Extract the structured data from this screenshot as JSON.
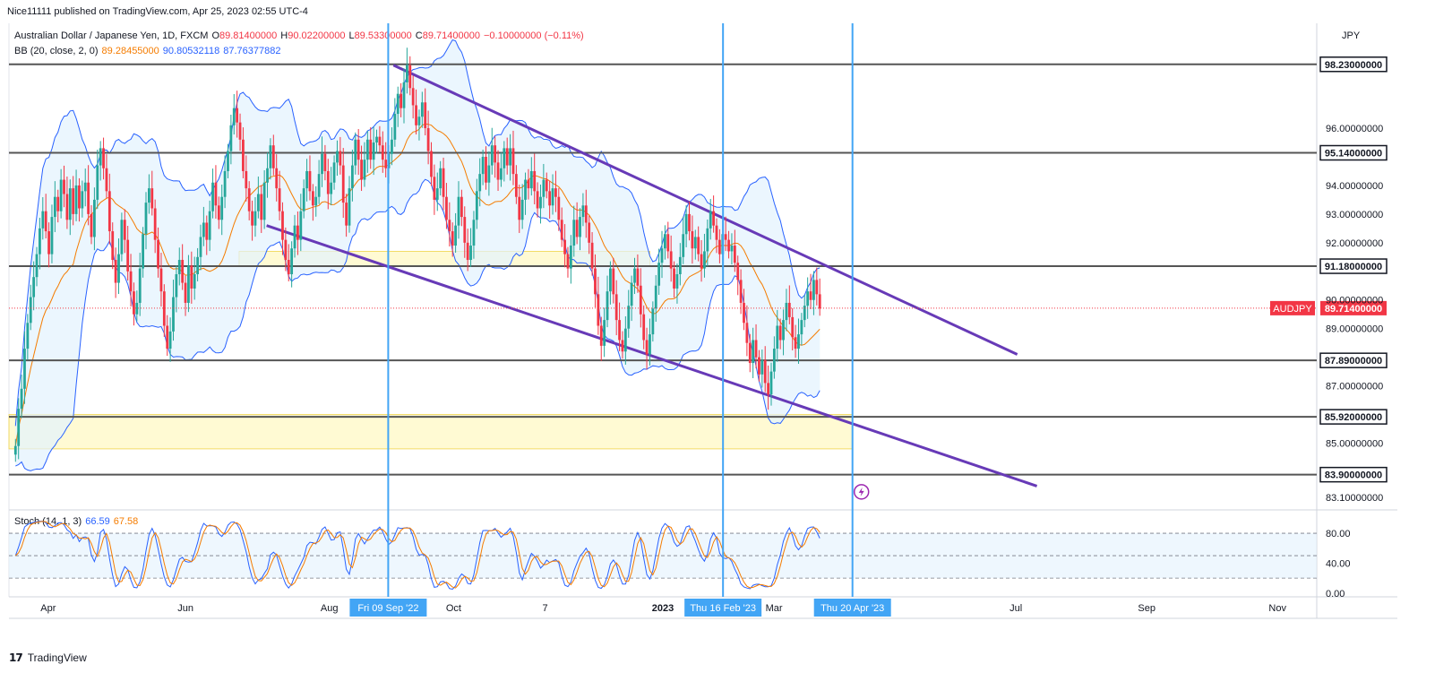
{
  "publisher": "Nice11111 published on TradingView.com, Apr 25, 2023 02:55 UTC-4",
  "symbol_legend": {
    "title": "Australian Dollar / Japanese Yen, 1D, FXCM",
    "open_label": "O",
    "open": "89.81400000",
    "high_label": "H",
    "high": "90.02200000",
    "low_label": "L",
    "low": "89.53300000",
    "close_label": "C",
    "close": "89.71400000",
    "change": "−0.10000000 (−0.11%)"
  },
  "bb_legend": {
    "label": "BB (20, close, 2, 0)",
    "basis": "89.28455000",
    "upper": "90.80532118",
    "lower": "87.76377882"
  },
  "stoch_legend": {
    "label": "Stoch (14, 1, 3)",
    "k": "66.59",
    "d": "67.58"
  },
  "currency": "JPY",
  "logo_text": "TradingView",
  "colors": {
    "up": "#26a69a",
    "down": "#f23645",
    "bb_basis": "#f57c00",
    "bb_band": "#2962ff",
    "bb_fill": "#e3f2fd",
    "trendline": "#673ab7",
    "hline": "#555555",
    "vline": "#42a5f5",
    "zone": "#fff59d",
    "stoch_k": "#2962ff",
    "stoch_d": "#f57c00"
  },
  "chart_data": {
    "type": "candlestick",
    "price_axis": {
      "ylim": [
        82.7,
        99.6
      ],
      "tick_labels": [
        "96.00000000",
        "94.00000000",
        "93.00000000",
        "92.00000000",
        "90.00000000",
        "89.00000000",
        "87.00000000",
        "85.00000000",
        "83.10000000"
      ],
      "tick_values": [
        96.0,
        94.0,
        93.0,
        92.0,
        90.0,
        89.0,
        87.0,
        85.0,
        83.1
      ]
    },
    "time_axis": {
      "labels": [
        "Apr",
        "Jun",
        "Aug",
        "Oct",
        "7",
        "2023",
        "Mar",
        "Jul",
        "Sep",
        "Nov"
      ],
      "label_positions": [
        0.03,
        0.135,
        0.245,
        0.34,
        0.41,
        0.5,
        0.585,
        0.77,
        0.87,
        0.97
      ]
    },
    "horizontal_levels": [
      {
        "label": "98.23000000",
        "value": 98.23,
        "dark": true
      },
      {
        "label": "95.14000000",
        "value": 95.14,
        "dark": true
      },
      {
        "label": "91.18000000",
        "value": 91.18,
        "dark": true
      },
      {
        "label": "87.89000000",
        "value": 87.89,
        "dark": true
      },
      {
        "label": "85.92000000",
        "value": 85.92,
        "dark": true
      },
      {
        "label": "83.90000000",
        "value": 83.9,
        "dark": true
      }
    ],
    "last_price": {
      "label": "AUDJPY",
      "value": "89.71400000",
      "y": 89.714
    },
    "vertical_markers": [
      {
        "label": "Fri 09 Sep '22",
        "t": 0.29
      },
      {
        "label": "Thu 16 Feb '23",
        "t": 0.546
      },
      {
        "label": "Thu 20 Apr '23",
        "t": 0.645
      }
    ],
    "zones": [
      {
        "t0": 0.176,
        "t1": 0.49,
        "y0": 91.2,
        "y1": 91.7
      },
      {
        "t0": 0.0,
        "t1": 0.645,
        "y0": 84.8,
        "y1": 86.0
      }
    ],
    "trendlines": [
      {
        "t0": 0.294,
        "y0": 98.2,
        "t1": 0.771,
        "y1": 88.1
      },
      {
        "t0": 0.197,
        "y0": 92.6,
        "t1": 0.786,
        "y1": 83.5
      }
    ],
    "candles": {
      "closes": [
        84.9,
        86.2,
        86.9,
        88.3,
        89.2,
        90.1,
        90.8,
        91.6,
        92.5,
        93.1,
        92.4,
        91.6,
        92.9,
        93.6,
        93.1,
        94.2,
        93.7,
        92.8,
        93.9,
        93.0,
        94.0,
        93.2,
        93.8,
        94.1,
        93.0,
        92.2,
        93.5,
        94.7,
        95.3,
        94.6,
        93.8,
        92.4,
        91.4,
        90.6,
        91.6,
        92.8,
        92.1,
        91.0,
        90.3,
        89.5,
        89.9,
        91.1,
        92.3,
        93.4,
        93.9,
        93.2,
        92.1,
        91.1,
        90.3,
        89.1,
        88.3,
        88.9,
        90.1,
        90.9,
        91.4,
        90.6,
        89.9,
        91.2,
        90.4,
        90.9,
        91.5,
        92.2,
        92.7,
        92.1,
        93.1,
        94.1,
        93.3,
        92.8,
        93.6,
        94.5,
        95.2,
        96.1,
        96.7,
        96.2,
        95.6,
        94.5,
        93.9,
        93.1,
        92.6,
        93.1,
        93.7,
        92.8,
        94.1,
        94.6,
        95.4,
        94.6,
        93.9,
        93.1,
        92.1,
        91.4,
        90.9,
        91.8,
        92.6,
        92.1,
        93.1,
        93.9,
        94.5,
        93.8,
        93.3,
        93.6,
        94.4,
        95.1,
        94.5,
        93.7,
        94.1,
        94.8,
        95.2,
        94.7,
        93.4,
        92.6,
        93.9,
        94.7,
        95.6,
        94.9,
        94.2,
        94.9,
        95.6,
        94.9,
        95.5,
        95.7,
        95.4,
        94.9,
        94.6,
        95.1,
        95.6,
        96.5,
        97.2,
        96.7,
        97.6,
        98.2,
        97.4,
        96.8,
        96.1,
        96.4,
        96.9,
        96.0,
        95.2,
        94.3,
        93.5,
        93.9,
        94.6,
        93.6,
        92.8,
        92.4,
        91.9,
        92.6,
        93.6,
        92.9,
        92.0,
        91.4,
        91.9,
        92.8,
        93.8,
        94.4,
        95.0,
        94.1,
        94.7,
        95.4,
        94.8,
        94.2,
        94.6,
        95.3,
        94.7,
        95.3,
        94.4,
        93.6,
        92.8,
        93.5,
        94.2,
        93.9,
        94.5,
        93.8,
        93.2,
        93.6,
        94.2,
        93.8,
        93.3,
        93.9,
        93.6,
        92.8,
        92.1,
        91.6,
        91.1,
        91.9,
        92.8,
        92.2,
        92.9,
        93.3,
        92.7,
        92.0,
        91.1,
        90.2,
        89.1,
        88.4,
        89.3,
        90.3,
        91.1,
        90.2,
        89.3,
        88.6,
        88.2,
        89.0,
        89.8,
        90.6,
        91.1,
        90.5,
        89.5,
        88.6,
        88.1,
        88.8,
        89.7,
        90.5,
        91.3,
        91.8,
        92.3,
        91.7,
        91.1,
        90.4,
        90.9,
        91.5,
        92.3,
        93.0,
        92.4,
        91.8,
        92.2,
        91.6,
        91.1,
        91.7,
        92.5,
        93.1,
        92.6,
        92.1,
        91.6,
        92.3,
        92.1,
        91.7,
        91.9,
        91.3,
        90.7,
        89.9,
        89.2,
        88.5,
        87.8,
        88.6,
        88.0,
        87.4,
        87.9,
        87.1,
        86.7,
        87.5,
        88.3,
        89.1,
        88.6,
        89.3,
        89.9,
        89.4,
        88.7,
        88.3,
        88.8,
        89.3,
        89.8,
        90.3,
        90.0,
        90.7,
        90.2,
        89.7
      ],
      "t0": 0.005,
      "t1": 0.62
    },
    "bollinger": {
      "basis_color": "#f57c00",
      "band_color": "#2962ff"
    },
    "stochastic": {
      "ylim": [
        -5,
        110
      ],
      "tick_labels": [
        "80.00",
        "40.00",
        "0.00"
      ],
      "tick_values": [
        80,
        40,
        0
      ],
      "upper_band": 80,
      "lower_band": 20
    }
  }
}
